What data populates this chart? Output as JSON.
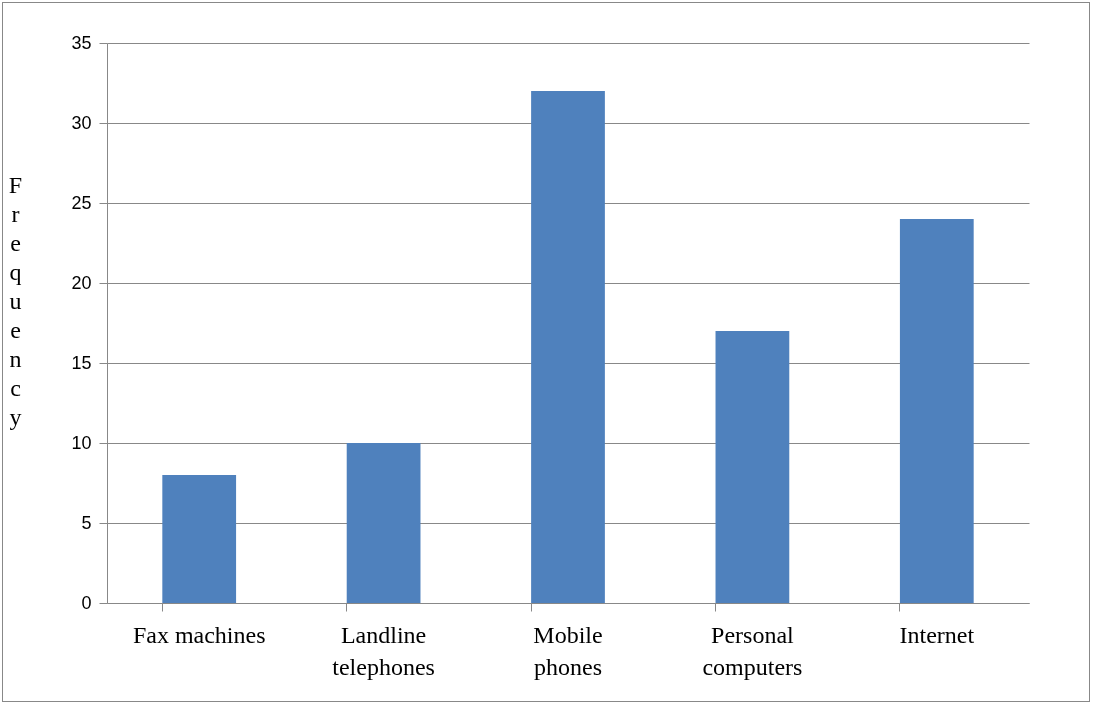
{
  "chart_data": {
    "type": "bar",
    "ylabel": "Frequency",
    "categories": [
      "Fax machines",
      "Landline telephones",
      "Mobile phones",
      "Personal computers",
      "Internet"
    ],
    "values": [
      8,
      10,
      32,
      17,
      24
    ],
    "color": "#4f81bd",
    "ylim": [
      0,
      35
    ],
    "yticks": [
      0,
      5,
      10,
      15,
      20,
      25,
      30,
      35
    ],
    "grid": "y"
  }
}
